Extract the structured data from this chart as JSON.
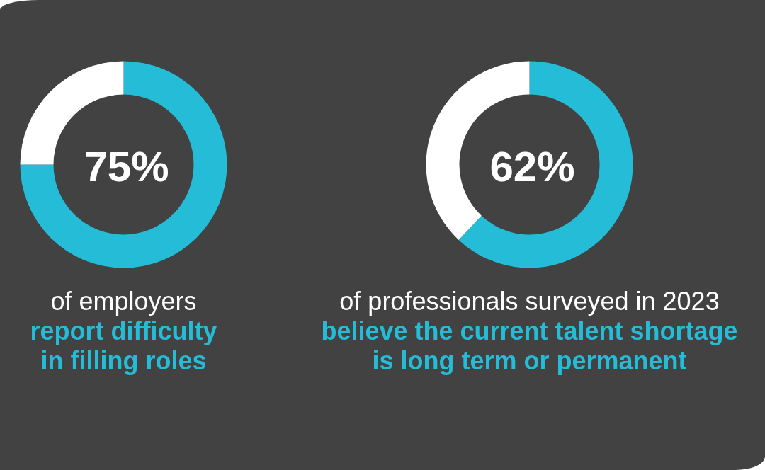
{
  "chart_data": [
    {
      "type": "donut",
      "categories": [
        null,
        null
      ],
      "values": [
        75,
        25
      ],
      "colors": [
        "#25bcd7",
        "#ffffff"
      ],
      "value_labels": [
        "75%",
        null
      ],
      "title": "of employers",
      "subtitle": "report difficulty\nin filling roles"
    },
    {
      "type": "donut",
      "categories": [
        null,
        null
      ],
      "values": [
        62,
        38
      ],
      "colors": [
        "#25bcd7",
        "#ffffff"
      ],
      "value_labels": [
        "62%",
        null
      ],
      "title": "of professionals surveyed in 2023",
      "subtitle": "believe the current talent shortage\nis long term or permanent"
    }
  ]
}
